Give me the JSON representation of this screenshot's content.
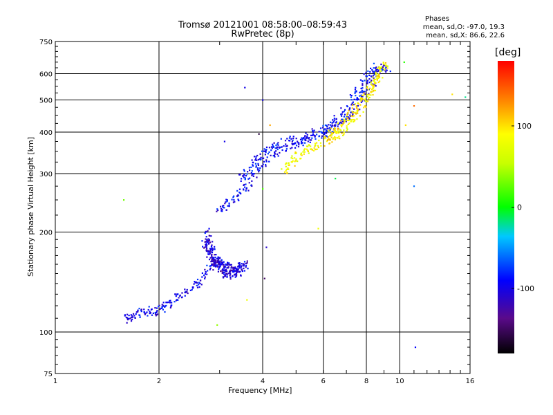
{
  "chart_data": {
    "type": "scatter",
    "title": "Tromsø 20121001 08:58:00–08:59:43",
    "subtitle": "RwPretec (8p)",
    "stats_title": "Phases",
    "stats_line1": "mean, sd,O: -97.0, 19.3",
    "stats_line2": "mean, sd,X:  86.6, 22.6",
    "xlabel": "Frequency [MHz]",
    "ylabel": "Stationary phase Virtual Height [km]",
    "x_scale": "log",
    "y_scale": "log",
    "xlim": [
      1,
      16
    ],
    "ylim": [
      75,
      750
    ],
    "x_ticks": [
      1,
      2,
      4,
      6,
      8,
      10,
      16
    ],
    "x_tick_labels": [
      "1",
      "2",
      "4",
      "6",
      "8",
      "10",
      "16"
    ],
    "y_ticks": [
      75,
      100,
      200,
      300,
      400,
      500,
      600,
      750
    ],
    "y_tick_labels": [
      "75",
      "100",
      "200",
      "300",
      "400",
      "500",
      "600",
      "750"
    ],
    "grid": true,
    "colorbar": {
      "label": "[deg]",
      "range": [
        -180,
        180
      ],
      "ticks": [
        100,
        0,
        -100
      ],
      "tick_labels": [
        "100",
        "0",
        "-100"
      ]
    },
    "series": [
      {
        "mode": "O",
        "segments": [
          {
            "x": [
              1.58,
              1.65,
              1.75,
              1.85,
              1.95,
              2.05,
              2.15,
              2.3,
              2.45,
              2.6,
              2.75,
              2.85
            ],
            "y": [
              108,
              112,
              114,
              116,
              115,
              118,
              122,
              128,
              133,
              140,
              150,
              160
            ],
            "phase": -97
          },
          {
            "x": [
              2.75,
              2.78,
              2.82,
              2.86,
              2.9,
              2.95,
              3.0,
              3.05,
              3.1,
              3.2,
              3.3,
              3.4,
              3.5,
              3.6
            ],
            "y": [
              200,
              190,
              178,
              170,
              165,
              163,
              160,
              158,
              158,
              157,
              156,
              156,
              158,
              160
            ],
            "phase": -105
          },
          {
            "x": [
              2.7,
              2.8,
              2.9,
              3.0,
              3.1,
              3.2,
              3.3,
              3.4
            ],
            "y": [
              185,
              175,
              165,
              155,
              150,
              148,
              150,
              152
            ],
            "phase": -110
          },
          {
            "x": [
              2.95,
              3.1,
              3.3,
              3.5,
              3.7,
              3.9,
              4.1,
              4.4,
              4.8,
              5.2,
              5.6,
              6.0,
              6.4,
              6.8,
              7.2,
              7.6,
              8.0,
              8.4,
              8.8,
              9.2
            ],
            "y": [
              233,
              240,
              250,
              265,
              285,
              310,
              330,
              350,
              365,
              375,
              385,
              395,
              410,
              430,
              455,
              490,
              530,
              575,
              610,
              630
            ],
            "phase": -95
          },
          {
            "x": [
              3.45,
              3.6,
              3.8,
              4.0,
              4.3,
              4.6,
              5.0,
              5.4,
              5.8,
              6.2,
              6.6,
              7.0,
              7.4,
              7.8,
              8.2,
              8.6
            ],
            "y": [
              290,
              305,
              325,
              345,
              360,
              372,
              380,
              390,
              400,
              415,
              440,
              470,
              510,
              560,
              600,
              640
            ],
            "phase": -90
          }
        ]
      },
      {
        "mode": "X",
        "segments": [
          {
            "x": [
              4.6,
              4.8,
              5.0,
              5.3,
              5.6,
              6.0,
              6.4,
              6.8,
              7.2,
              7.6,
              8.0,
              8.3,
              8.6,
              8.9,
              9.1
            ],
            "y": [
              305,
              320,
              335,
              350,
              360,
              370,
              385,
              405,
              430,
              460,
              500,
              545,
              590,
              625,
              640
            ],
            "phase": 85
          },
          {
            "x": [
              6.0,
              6.4,
              6.8,
              7.2,
              7.6,
              8.0,
              8.4,
              8.8
            ],
            "y": [
              380,
              400,
              420,
              450,
              480,
              520,
              560,
              600
            ],
            "phase": 95
          }
        ]
      }
    ],
    "outliers": [
      {
        "x": 1.58,
        "y": 250,
        "phase": 30
      },
      {
        "x": 2.95,
        "y": 105,
        "phase": 40
      },
      {
        "x": 3.6,
        "y": 125,
        "phase": 80
      },
      {
        "x": 3.55,
        "y": 545,
        "phase": -100
      },
      {
        "x": 4.0,
        "y": 500,
        "phase": -100
      },
      {
        "x": 4.0,
        "y": 270,
        "phase": 20
      },
      {
        "x": 4.1,
        "y": 180,
        "phase": -110
      },
      {
        "x": 4.2,
        "y": 420,
        "phase": 120
      },
      {
        "x": 5.8,
        "y": 205,
        "phase": 80
      },
      {
        "x": 6.5,
        "y": 290,
        "phase": -10
      },
      {
        "x": 10.3,
        "y": 650,
        "phase": 10
      },
      {
        "x": 10.4,
        "y": 420,
        "phase": 100
      },
      {
        "x": 11.0,
        "y": 480,
        "phase": 140
      },
      {
        "x": 11.0,
        "y": 275,
        "phase": -60
      },
      {
        "x": 11.1,
        "y": 90,
        "phase": -90
      },
      {
        "x": 14.2,
        "y": 520,
        "phase": 100
      },
      {
        "x": 15.5,
        "y": 510,
        "phase": -20
      },
      {
        "x": 4.05,
        "y": 145,
        "phase": -150
      },
      {
        "x": 3.9,
        "y": 395,
        "phase": -160
      },
      {
        "x": 3.1,
        "y": 375,
        "phase": -100
      }
    ]
  }
}
